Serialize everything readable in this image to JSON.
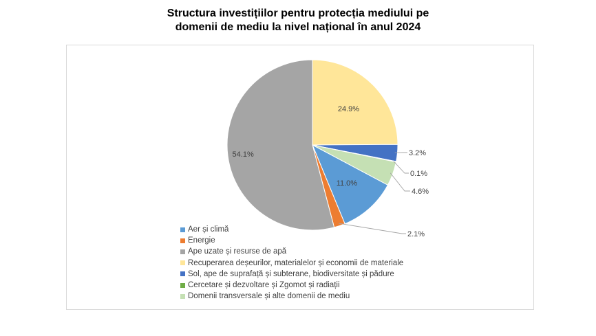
{
  "title_line1": "Structura investițiilor pentru protecția mediului pe",
  "title_line2": "domenii de mediu la nivel național în anul 2024",
  "chart_data": {
    "type": "pie",
    "title": "Structura investițiilor pentru protecția mediului pe domenii de mediu la nivel național în anul 2024",
    "legend_position": "bottom-left",
    "slices": [
      {
        "name": "Recuperarea deșeurilor, materialelor și economii de materiale",
        "value": 24.9,
        "label": "24.9%",
        "color": "#ffe699"
      },
      {
        "name": "Sol, ape de suprafață și subterane, biodiversitate și pădure",
        "value": 3.2,
        "label": "3.2%",
        "color": "#4472c4"
      },
      {
        "name": "Cercetare și dezvoltare și Zgomot și radiații",
        "value": 0.1,
        "label": "0.1%",
        "color": "#70ad47"
      },
      {
        "name": "Domenii transversale și alte domenii de mediu",
        "value": 4.6,
        "label": "4.6%",
        "color": "#c5e0b4"
      },
      {
        "name": "Aer și climă",
        "value": 11.0,
        "label": "11.0%",
        "color": "#5b9bd5"
      },
      {
        "name": "Energie",
        "value": 2.1,
        "label": "2.1%",
        "color": "#ed7d31"
      },
      {
        "name": "Ape uzate și resurse de apă",
        "value": 54.1,
        "label": "54.1%",
        "color": "#a5a5a5"
      }
    ],
    "legend": [
      {
        "name": "Aer și climă",
        "color": "#5b9bd5"
      },
      {
        "name": "Energie",
        "color": "#ed7d31"
      },
      {
        "name": "Ape uzate și resurse de apă",
        "color": "#a5a5a5"
      },
      {
        "name": "Recuperarea deșeurilor, materialelor și economii de materiale",
        "color": "#ffe699"
      },
      {
        "name": "Sol, ape de suprafață și subterane, biodiversitate și pădure",
        "color": "#4472c4"
      },
      {
        "name": "Cercetare și dezvoltare și Zgomot și radiații",
        "color": "#70ad47"
      },
      {
        "name": "Domenii transversale și alte domenii de mediu",
        "color": "#c5e0b4"
      }
    ]
  }
}
